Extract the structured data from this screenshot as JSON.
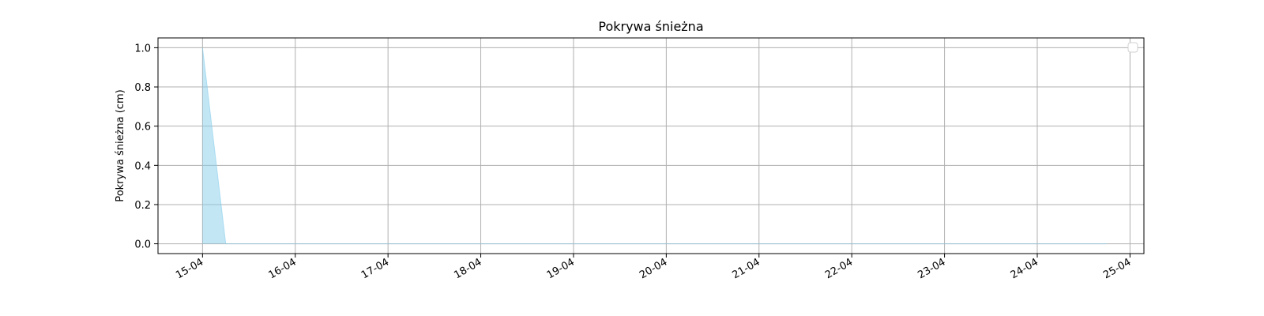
{
  "chart_data": {
    "type": "area",
    "title": "Pokrywa śnieżna",
    "xlabel": "",
    "ylabel": "Pokrywa śnieżna (cm)",
    "x_ticks": [
      "15-04",
      "16-04",
      "17-04",
      "18-04",
      "19-04",
      "20-04",
      "21-04",
      "22-04",
      "23-04",
      "24-04",
      "25-04"
    ],
    "xlim": [
      -0.48,
      10.15
    ],
    "ylim": [
      -0.05,
      1.05
    ],
    "y_ticks": [
      "0.0",
      "0.2",
      "0.4",
      "0.6",
      "0.8",
      "1.0"
    ],
    "grid": true,
    "legend": "top-right (empty)",
    "series": [
      {
        "x": [
          0.0,
          0.25,
          9.75
        ],
        "values": [
          1.0,
          0.0,
          0.0
        ]
      }
    ],
    "colors": {
      "fill": "#87CEEB",
      "line": "#87CEEB",
      "grid": "#b0b0b0",
      "axes": "#000000"
    }
  }
}
